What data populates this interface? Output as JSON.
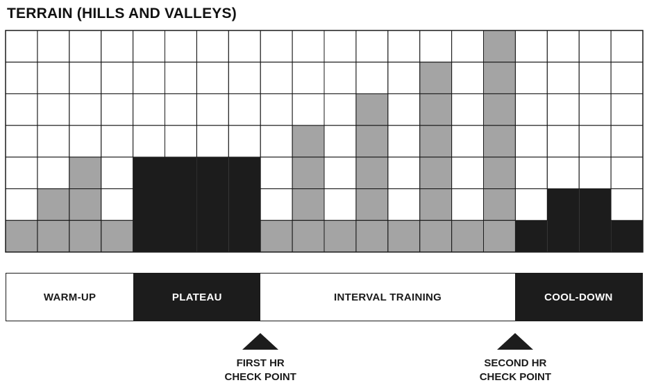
{
  "chart_data": {
    "type": "bar",
    "title": "TERRAIN (HILLS AND VALLEYS)",
    "rows": 7,
    "values": [
      1,
      2,
      3,
      1,
      3,
      3,
      3,
      3,
      1,
      4,
      1,
      5,
      1,
      6,
      1,
      7,
      1,
      2,
      2,
      1
    ],
    "cell_colors": [
      "gray",
      "gray",
      "gray",
      "gray",
      "black",
      "black",
      "black",
      "black",
      "gray",
      "gray",
      "gray",
      "gray",
      "gray",
      "gray",
      "gray",
      "gray",
      "black",
      "black",
      "black",
      "black"
    ],
    "colors": {
      "gray": "#a4a4a4",
      "black": "#1c1c1c",
      "grid": "#1a1a1a",
      "empty": "#ffffff"
    }
  },
  "phases": [
    {
      "label": "WARM-UP",
      "style": "light",
      "columns": 4
    },
    {
      "label": "PLATEAU",
      "style": "dark",
      "columns": 4
    },
    {
      "label": "INTERVAL TRAINING",
      "style": "light",
      "columns": 8
    },
    {
      "label": "COOL-DOWN",
      "style": "dark",
      "columns": 4
    }
  ],
  "checkpoints": [
    {
      "label": "FIRST HR\nCHECK POINT",
      "after_column": 8
    },
    {
      "label": "SECOND HR\nCHECK POINT",
      "after_column": 16
    }
  ]
}
